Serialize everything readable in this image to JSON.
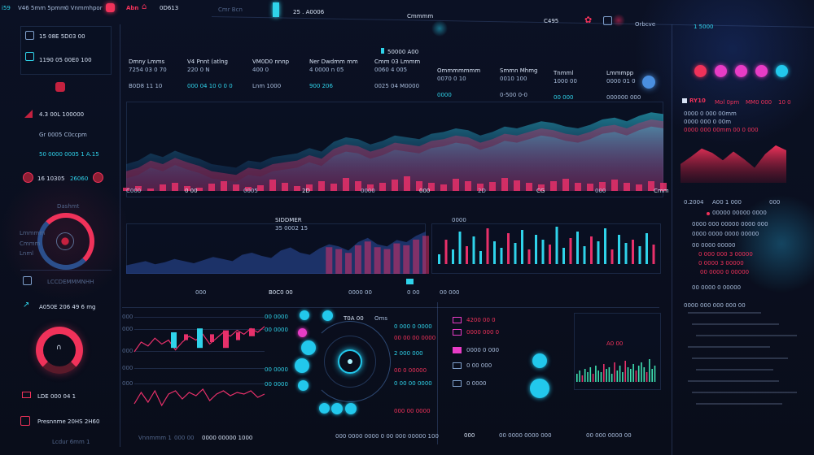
{
  "topbar": {
    "items": [
      "i59",
      "V46 5mm 5pmm",
      "0 Vnmmhpor",
      "Abn",
      "0D613",
      "Cmr Bcn",
      "25 . A0006",
      "Cmmmm",
      "C495",
      "Orbcve",
      "1 5000"
    ],
    "accent": "#f0325a"
  },
  "sidebar": {
    "rows": [
      "15 08E 5D03 00",
      "1190 05  00E0 100",
      "4.3 00L 100000",
      "Gr 0005  C0ccpm",
      "50 0000 0005 1 A.15",
      "16 10305",
      "26060",
      "Dashmt",
      "Lmmmm",
      "Cmmm",
      "Lnml",
      "LCCDEMMMNHH",
      "A050E 206 49 6 mg",
      "LDE 000 04 1",
      "Presnnme 20HS 2H60",
      "Lcdur 6mm 1"
    ]
  },
  "header": {
    "tab_label": "50000 A00",
    "metrics": [
      {
        "title": "Dmny Lmms",
        "value": "7254 03 0 70",
        "sub": "B0D8 11 10"
      },
      {
        "title": "V4 Pnnt (atlng",
        "value": "220 0 N",
        "sub": "000 04  10 0 0 0"
      },
      {
        "title": "VM0D0 nnnp",
        "value": "400 0",
        "sub": "Lnm 1000"
      },
      {
        "title": "Ner Dwdmm mm",
        "value": "4 0000 n 05",
        "sub": "900 206"
      },
      {
        "title": "Cmm 03 Lmmm",
        "value": "0060 4 005",
        "sub": "0025 04  M0000"
      },
      {
        "title": "Ommmmmmm",
        "value": "0070 0 10",
        "sub": "0000"
      },
      {
        "title": "Smmn Mhmg",
        "value": "0010 100",
        "sub": "0-500 0-0"
      },
      {
        "title": "Tnmml",
        "value": "1000 00",
        "sub": "00 000"
      },
      {
        "title": "Lmmmpp",
        "value": "0000 01 0",
        "sub": "000000 000"
      }
    ]
  },
  "main_chart": {
    "x_labels": [
      "C000",
      "0 00",
      "0005",
      "2D",
      "0000",
      "000",
      "2D",
      "CG",
      "000",
      "Cmm"
    ],
    "area": [
      30,
      34,
      42,
      38,
      45,
      40,
      36,
      30,
      28,
      26,
      34,
      32,
      38,
      40,
      42,
      48,
      44,
      55,
      60,
      58,
      52,
      56,
      62,
      60,
      58,
      64,
      66,
      70,
      68,
      62,
      66,
      72,
      70,
      74,
      78,
      76,
      72,
      70,
      74,
      80,
      82,
      78,
      84,
      88,
      86
    ],
    "bars": [
      4,
      6,
      3,
      8,
      10,
      6,
      4,
      9,
      12,
      8,
      5,
      7,
      14,
      10,
      6,
      8,
      12,
      9,
      16,
      12,
      8,
      10,
      14,
      18,
      12,
      10,
      8,
      15,
      12,
      9,
      11,
      16,
      13,
      10,
      8,
      12,
      15,
      10,
      9,
      11,
      14,
      10,
      8,
      12,
      10
    ],
    "colors": {
      "cyan": "#2fd3ea",
      "magenta": "#e8306a"
    }
  },
  "mid_left": {
    "title": "SIDDMER",
    "sub": "35 0002 15",
    "series": [
      8,
      10,
      12,
      9,
      11,
      14,
      12,
      10,
      13,
      16,
      14,
      12,
      18,
      20,
      17,
      15,
      22,
      25,
      20,
      18,
      24,
      28,
      26,
      22,
      30,
      34,
      28,
      26,
      32,
      30,
      36,
      40
    ]
  },
  "mid_right": {
    "title": "0000",
    "bars": [
      12,
      30,
      18,
      40,
      22,
      34,
      16,
      44,
      28,
      20,
      38,
      26,
      42,
      18,
      36,
      30,
      24,
      46,
      20,
      32,
      40,
      22,
      34,
      28,
      44,
      18,
      36,
      26,
      30,
      22,
      38,
      24
    ]
  },
  "toolbar": {
    "items": [
      "000",
      "B0C0 00",
      "0000 00",
      "0 00",
      "00 000"
    ]
  },
  "bottom_left": {
    "axis": [
      "000",
      "000",
      "000",
      "000",
      "000"
    ],
    "tags": [
      "00 0000",
      "00 0000",
      "00 0000",
      "00 0000"
    ],
    "line1": [
      10,
      20,
      16,
      24,
      18,
      22,
      12,
      20,
      26,
      22,
      28,
      18,
      24,
      30,
      26,
      32,
      28,
      34,
      30,
      36
    ],
    "line2": [
      8,
      22,
      10,
      24,
      6,
      20,
      24,
      14,
      22,
      18,
      26,
      12,
      20,
      24,
      18,
      22,
      20,
      24,
      16,
      20
    ],
    "candles": [
      [
        14,
        30
      ],
      [
        22,
        28
      ],
      [
        14,
        34
      ],
      [
        20,
        28
      ],
      [
        14,
        32
      ],
      [
        22,
        30
      ],
      [
        26,
        34
      ]
    ],
    "footer": [
      "Vnnmmm 1",
      "000 00",
      "0000 00000 1000"
    ]
  },
  "radar": {
    "title": "T0A 00",
    "label": "Oms",
    "items": [
      "0 000 0 0000",
      "00 00 00 0000",
      "2 000 000",
      "00 0 00000",
      "0 00 00 0000",
      "000 00 0000"
    ],
    "footer": "000 0000 0000 0 00 000 00000 100"
  },
  "bottom_right": {
    "legend": [
      "4200 00 0",
      "0000 000 0",
      "0000 0 000",
      "0 00 000",
      "0 0000"
    ],
    "title": "A0 00",
    "footer": [
      "000",
      "00 0000 0000 000",
      "00 000 0000 00"
    ],
    "bars": [
      10,
      14,
      8,
      16,
      12,
      18,
      10,
      20,
      14,
      12,
      22,
      16,
      18,
      10,
      24,
      14,
      20,
      12,
      26,
      18,
      16,
      22,
      14,
      20,
      24,
      18,
      12,
      28,
      16,
      20
    ]
  },
  "right_panel": {
    "title": "RY10",
    "headers": [
      "Mol 0pm",
      "MM0 000",
      "10 0"
    ],
    "rows": [
      "0000  0 000 00mm",
      "0000  000 0 00m",
      "0000  000 00mm  00 0 000"
    ],
    "area": [
      30,
      42,
      55,
      48,
      36,
      50,
      38,
      24,
      46,
      60,
      52
    ],
    "stats": [
      "0.2004",
      "A00 1 000",
      "000",
      "00000 00000 0000",
      "0000 000 00000 0000 000",
      "0000 0000 0000 00000",
      "00 0000 00000",
      "0 000 000 3 00000",
      "00 0000 0 00000",
      "0 0000 3 00000",
      "00 0000 0 00000",
      "0000 000 000 000 00"
    ],
    "dot_colors": [
      "#f0325a",
      "#e83cc6",
      "#e83cc6",
      "#e83cc6",
      "#22c8ec"
    ]
  }
}
